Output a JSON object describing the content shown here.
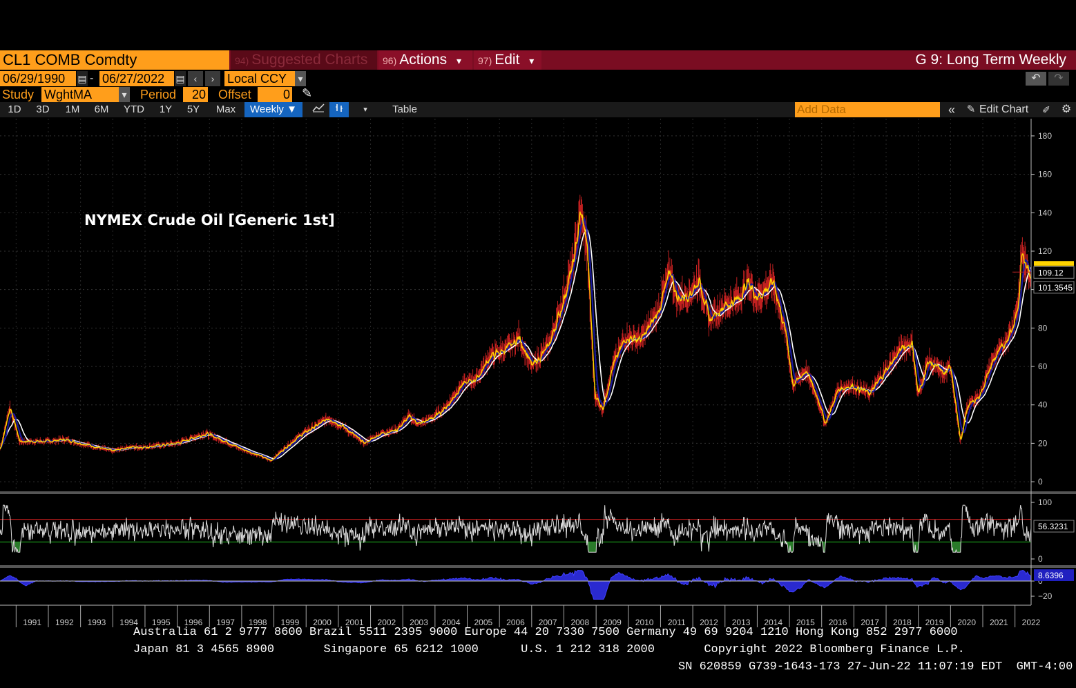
{
  "header": {
    "ticker": "CL1 COMB Comdty",
    "menu": [
      {
        "num": "94)",
        "label": "Suggested Charts"
      },
      {
        "num": "96)",
        "label": "Actions",
        "arrow": "▾"
      },
      {
        "num": "97)",
        "label": "Edit",
        "arrow": "▾"
      }
    ],
    "title": "G 9: Long Term Weekly"
  },
  "controls": {
    "start_date": "06/29/1990",
    "date_sep": "-",
    "end_date": "06/27/2022",
    "currency": "Local CCY",
    "study_label": "Study",
    "study_value": "WghtMA",
    "period_label": "Period",
    "period_value": "20",
    "offset_label": "Offset",
    "offset_value": "0"
  },
  "toolbar": {
    "ranges": [
      "1D",
      "3D",
      "1M",
      "6M",
      "YTD",
      "1Y",
      "5Y",
      "Max"
    ],
    "frequency": "Weekly ▼",
    "table_label": "Table",
    "add_data_placeholder": "Add Data",
    "edit_chart_label": "Edit Chart",
    "collapse_icon": "«"
  },
  "colors": {
    "accent_orange": "#ff9e1b",
    "header_red": "#7a0d22",
    "price_yellow": "#ffd400",
    "ma_blue": "#1a1a9a",
    "ma_white": "#ffffff",
    "rsi_overbought": "#d02020",
    "rsi_oversold": "#20c020",
    "lower_fill": "#2a2ad0"
  },
  "chart_data": {
    "type": "line",
    "title": "NYMEX Crude Oil [Generic 1st]",
    "x_range": [
      1990.5,
      2022.5
    ],
    "ylim": [
      -5,
      185
    ],
    "yticks": [
      0,
      20,
      40,
      60,
      80,
      100,
      120,
      140,
      160,
      180
    ],
    "x_tick_labels": [
      "1991",
      "1992",
      "1993",
      "1994",
      "1995",
      "1996",
      "1997",
      "1998",
      "1999",
      "2000",
      "2001",
      "2002",
      "2003",
      "2004",
      "2005",
      "2006",
      "2007",
      "2008",
      "2009",
      "2010",
      "2011",
      "2012",
      "2013",
      "2014",
      "2015",
      "2016",
      "2017",
      "2018",
      "2019",
      "2020",
      "2021",
      "2022"
    ],
    "price_series": {
      "years": [
        1990.5,
        1990.8,
        1991.1,
        1991.5,
        1992.0,
        1992.5,
        1993.0,
        1993.5,
        1994.0,
        1994.5,
        1995.0,
        1995.5,
        1996.0,
        1996.5,
        1996.9,
        1997.5,
        1998.0,
        1998.5,
        1998.9,
        1999.3,
        1999.8,
        2000.3,
        2000.7,
        2001.2,
        2001.8,
        2002.3,
        2002.8,
        2003.2,
        2003.5,
        2004.0,
        2004.4,
        2004.8,
        2005.3,
        2005.7,
        2006.3,
        2006.6,
        2007.0,
        2007.5,
        2007.9,
        2008.3,
        2008.5,
        2008.7,
        2008.95,
        2009.2,
        2009.5,
        2009.9,
        2010.4,
        2010.9,
        2011.3,
        2011.5,
        2011.9,
        2012.2,
        2012.5,
        2012.9,
        2013.4,
        2013.7,
        2014.0,
        2014.5,
        2014.9,
        2015.1,
        2015.5,
        2015.9,
        2016.1,
        2016.5,
        2016.9,
        2017.5,
        2017.9,
        2018.5,
        2018.8,
        2018.98,
        2019.3,
        2019.8,
        2020.0,
        2020.3,
        2020.5,
        2020.9,
        2021.3,
        2021.6,
        2021.9,
        2022.1,
        2022.2,
        2022.35,
        2022.5
      ],
      "values": [
        17,
        39,
        21,
        21,
        21,
        22,
        20,
        18,
        16,
        18,
        18,
        19,
        20,
        23,
        25,
        21,
        17,
        14,
        11,
        17,
        24,
        29,
        33,
        28,
        20,
        25,
        27,
        34,
        30,
        34,
        40,
        50,
        54,
        65,
        70,
        75,
        60,
        70,
        90,
        115,
        140,
        125,
        45,
        38,
        60,
        75,
        74,
        88,
        110,
        95,
        98,
        105,
        84,
        91,
        95,
        104,
        96,
        104,
        75,
        50,
        58,
        42,
        30,
        48,
        50,
        46,
        56,
        70,
        72,
        45,
        63,
        56,
        60,
        20,
        39,
        45,
        63,
        70,
        80,
        93,
        120,
        110,
        109.12
      ],
      "last_value": "109.12"
    },
    "ma_series": [
      {
        "name": "",
        "label": "101.3545"
      }
    ],
    "rsi": {
      "ylim": [
        0,
        100
      ],
      "yticks": [
        0,
        100
      ],
      "upper": 70,
      "lower": 30,
      "last_value": "56.3231"
    },
    "lower_study": {
      "yticks": [
        0,
        -20
      ],
      "last_value": "8.6396"
    }
  },
  "footer": {
    "line1": "Australia 61 2 9777 8600 Brazil 5511 2395 9000 Europe 44 20 7330 7500 Germany 49 69 9204 1210 Hong Kong 852 2977 6000",
    "line2": "Japan 81 3 4565 8900       Singapore 65 6212 1000      U.S. 1 212 318 2000       Copyright 2022 Bloomberg Finance L.P.",
    "line3": "SN 620859 G739-1643-173 27-Jun-22 11:07:19 EDT  GMT-4:00"
  }
}
